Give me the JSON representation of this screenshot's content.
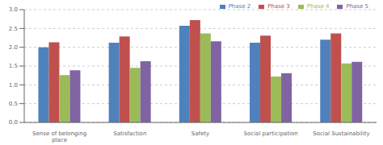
{
  "chart_data": {
    "type": "bar",
    "categories": [
      "Sense of belonging\nplace",
      "Satisfaction",
      "Safety",
      "Social participation",
      "Social Sustainability"
    ],
    "series": [
      {
        "name": "Phase 2",
        "color": "#4F81BD",
        "values": [
          2.0,
          2.12,
          2.57,
          2.12,
          2.2
        ]
      },
      {
        "name": "Phase 3",
        "color": "#C0504D",
        "values": [
          2.13,
          2.29,
          2.72,
          2.31,
          2.37
        ]
      },
      {
        "name": "Phase 4",
        "color": "#9BBB59",
        "values": [
          1.26,
          1.45,
          2.37,
          1.22,
          1.57
        ]
      },
      {
        "name": "Phase 5",
        "color": "#8064A2",
        "values": [
          1.39,
          1.63,
          2.16,
          1.31,
          1.61
        ]
      }
    ],
    "ylim": [
      0,
      3
    ],
    "yticks": [
      {
        "value": 0,
        "label": "0.0"
      },
      0.5,
      {
        "value": 1.0,
        "label": "1.0"
      },
      1.5,
      {
        "value": 2.0,
        "label": "2.0"
      },
      2.5,
      {
        "value": 3.0,
        "label": "3.0"
      }
    ],
    "grid": true,
    "legend": "upper right"
  }
}
